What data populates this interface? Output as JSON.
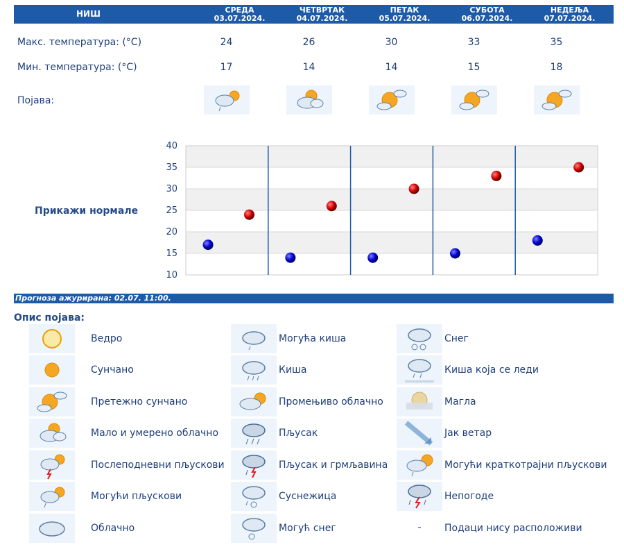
{
  "header": {
    "city": "НИШ",
    "days": [
      {
        "name": "СРЕДА",
        "date": "03.07.2024."
      },
      {
        "name": "ЧЕТВРТАК",
        "date": "04.07.2024."
      },
      {
        "name": "ПЕТАК",
        "date": "05.07.2024."
      },
      {
        "name": "СУБОТА",
        "date": "06.07.2024."
      },
      {
        "name": "НЕДЕЉА",
        "date": "07.07.2024."
      }
    ]
  },
  "rows": {
    "max_label": "Макс. температура: (°C)",
    "min_label": "Мин. температура: (°C)",
    "phenomenon_label": "Појава:",
    "max": [
      24,
      26,
      30,
      33,
      35
    ],
    "min": [
      17,
      14,
      14,
      15,
      18
    ],
    "icons": [
      "possible-showers-icon",
      "partly-cloudy-icon",
      "mostly-sunny-icon",
      "mostly-sunny-icon",
      "mostly-sunny-icon"
    ]
  },
  "normals_link": "Прикажи нормале",
  "chart_data": {
    "type": "scatter",
    "categories": [
      "03.07.2024.",
      "04.07.2024.",
      "05.07.2024.",
      "06.07.2024.",
      "07.07.2024."
    ],
    "series": [
      {
        "values": [
          24,
          26,
          30,
          33,
          35
        ],
        "color": "#cc0000"
      },
      {
        "values": [
          17,
          14,
          14,
          15,
          18
        ],
        "color": "#0000cc"
      }
    ],
    "yticks": [
      40,
      35,
      30,
      25,
      20,
      15,
      10
    ],
    "ylim": [
      10,
      40
    ],
    "grid": true
  },
  "updated": "Прогноза ажурирана:  02.07. 11:00.",
  "legend": {
    "title": "Опис појава:",
    "items": [
      {
        "label": "Ведро",
        "icon": "clear-sun-icon"
      },
      {
        "label": "Сунчано",
        "icon": "sunny-icon"
      },
      {
        "label": "Претежно сунчано",
        "icon": "mostly-sunny-icon"
      },
      {
        "label": "Мало и умерено облачно",
        "icon": "partly-cloudy-icon"
      },
      {
        "label": "Послеподневни пљускови",
        "icon": "afternoon-showers-icon"
      },
      {
        "label": "Могући пљускови",
        "icon": "possible-showers-icon"
      },
      {
        "label": "Облачно",
        "icon": "cloudy-icon"
      },
      {
        "label": "Могућа киша",
        "icon": "possible-rain-icon"
      },
      {
        "label": "Киша",
        "icon": "rain-icon"
      },
      {
        "label": "Промењиво облачно",
        "icon": "variable-cloudy-icon"
      },
      {
        "label": "Пљусак",
        "icon": "shower-icon"
      },
      {
        "label": "Пљусак и грмљавина",
        "icon": "thunder-shower-icon"
      },
      {
        "label": "Суснежица",
        "icon": "sleet-icon"
      },
      {
        "label": "Могућ снег",
        "icon": "possible-snow-icon"
      },
      {
        "label": "Снег",
        "icon": "snow-icon"
      },
      {
        "label": "Киша која се леди",
        "icon": "freezing-rain-icon"
      },
      {
        "label": "Магла",
        "icon": "fog-icon"
      },
      {
        "label": "Јак ветар",
        "icon": "strong-wind-icon"
      },
      {
        "label": "Могући краткотрајни пљускови",
        "icon": "brief-showers-icon"
      },
      {
        "label": "Непогоде",
        "icon": "storm-icon"
      },
      {
        "label": "Подаци нису расположиви",
        "icon": "",
        "dash": "-"
      }
    ]
  }
}
